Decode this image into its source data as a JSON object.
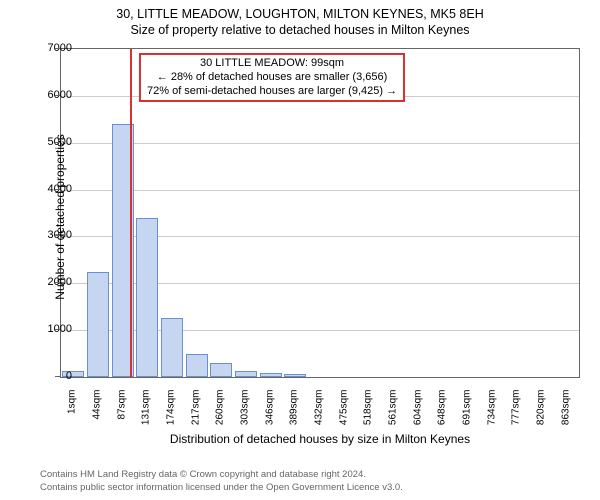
{
  "title": "30, LITTLE MEADOW, LOUGHTON, MILTON KEYNES, MK5 8EH",
  "subtitle": "Size of property relative to detached houses in Milton Keynes",
  "chart": {
    "type": "bar",
    "y_axis_label": "Number of detached properties",
    "x_axis_label": "Distribution of detached houses by size in Milton Keynes",
    "ylim_max": 7000,
    "y_ticks": [
      0,
      1000,
      2000,
      3000,
      4000,
      5000,
      6000,
      7000
    ],
    "x_categories": [
      "1sqm",
      "44sqm",
      "87sqm",
      "131sqm",
      "174sqm",
      "217sqm",
      "260sqm",
      "303sqm",
      "346sqm",
      "389sqm",
      "432sqm",
      "475sqm",
      "518sqm",
      "561sqm",
      "604sqm",
      "648sqm",
      "691sqm",
      "734sqm",
      "777sqm",
      "820sqm",
      "863sqm"
    ],
    "values": [
      120,
      2250,
      5400,
      3400,
      1250,
      500,
      300,
      120,
      90,
      60,
      0,
      0,
      0,
      0,
      0,
      0,
      0,
      0,
      0,
      0,
      0
    ],
    "bar_fill": "#c7d6f0",
    "bar_border": "#6b8fd4",
    "grid_color": "#cccccc",
    "background_color": "#ffffff",
    "axis_color": "#666666",
    "reference_line": {
      "value_sqm": 99,
      "color": "#d93030"
    },
    "annotation": {
      "line1": "30 LITTLE MEADOW: 99sqm",
      "line2": "← 28% of detached houses are smaller (3,656)",
      "line3": "72% of semi-detached houses are larger (9,425) →",
      "border_color": "#d93030",
      "background": "#ffffff",
      "fontsize": 11
    }
  },
  "footer": {
    "line1": "Contains HM Land Registry data © Crown copyright and database right 2024.",
    "line2": "Contains public sector information licensed under the Open Government Licence v3.0."
  }
}
